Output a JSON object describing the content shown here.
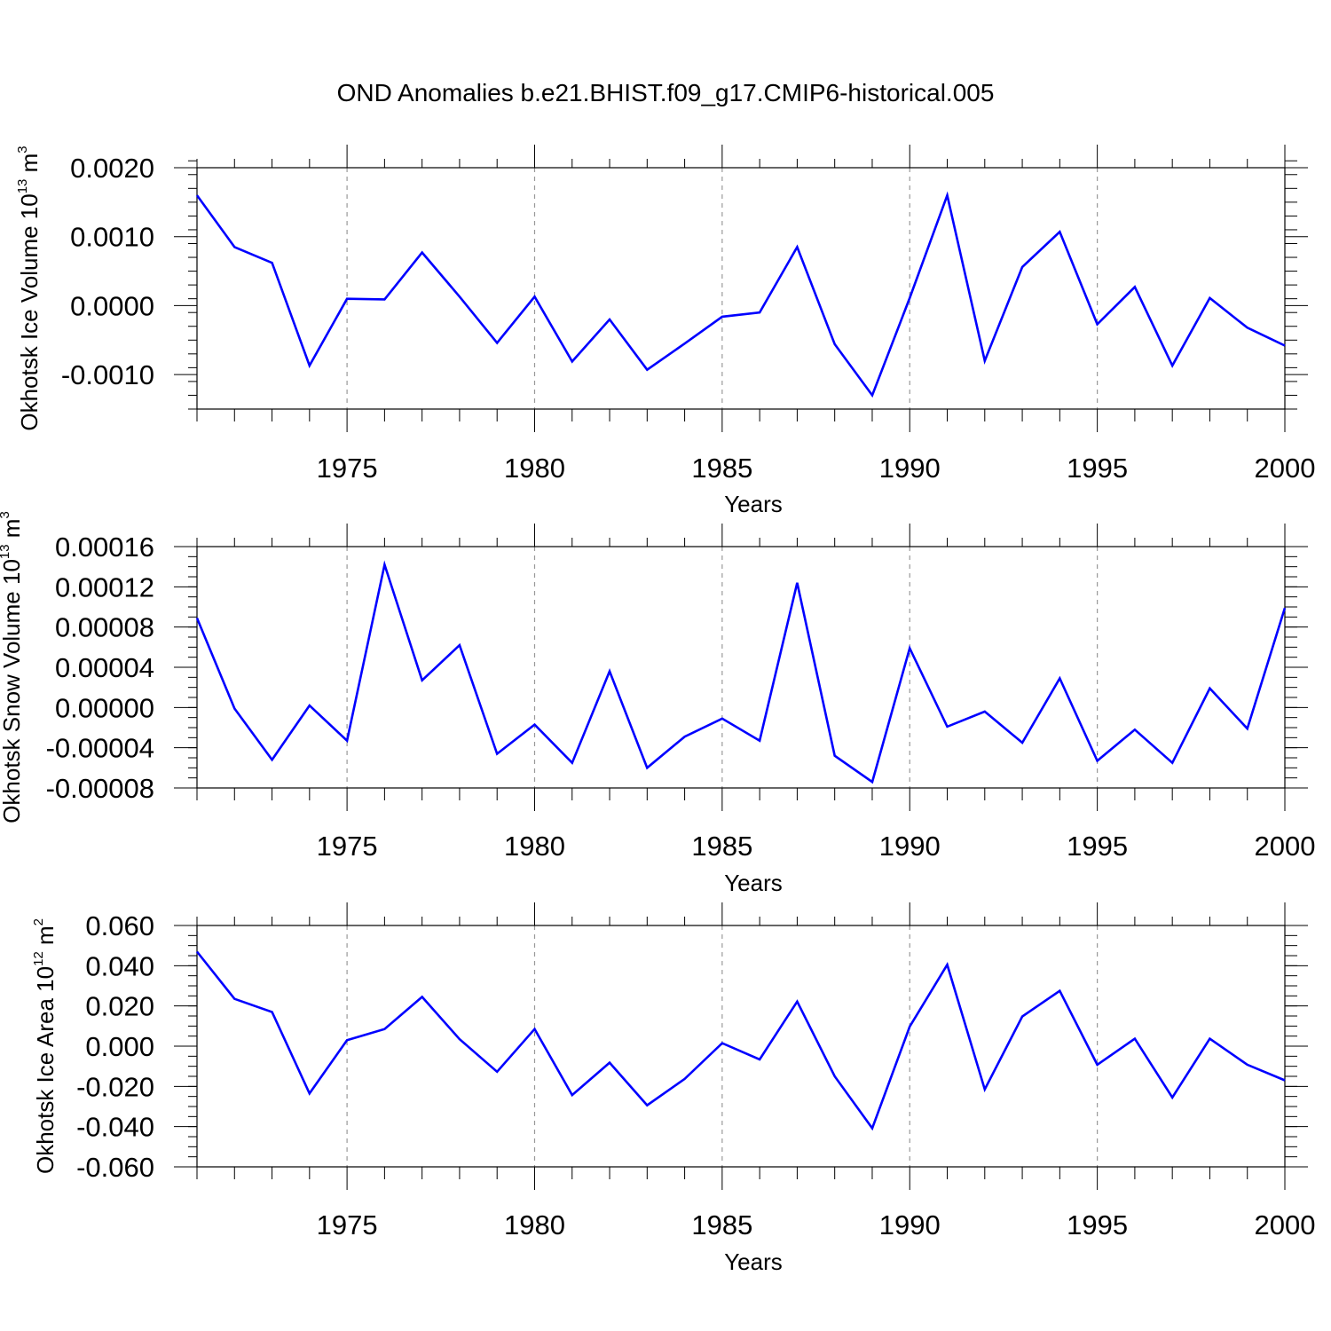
{
  "figure": {
    "title": "OND Anomalies b.e21.BHIST.f09_g17.CMIP6-historical.005"
  },
  "colors": {
    "series": "#0000ff",
    "grid": "#999999",
    "axis": "#000000"
  },
  "chart_data": [
    {
      "type": "line",
      "ylabel_main": "Okhotsk Ice Volume 10",
      "ylabel_exp": "13",
      "ylabel_unit": " m",
      "ylabel_unit_exp": "3",
      "xlabel": "Years",
      "xlim": [
        1971,
        2000
      ],
      "ylim": [
        -0.0015,
        0.002
      ],
      "yticks": [
        -0.001,
        0.0,
        0.001,
        0.002
      ],
      "ytick_labels": [
        "-0.0010",
        "0.0000",
        "0.0010",
        "0.0020"
      ],
      "yminor_step": 0.0002,
      "xticks": [
        1975,
        1980,
        1985,
        1990,
        1995,
        2000
      ],
      "xtick_labels": [
        "1975",
        "1980",
        "1985",
        "1990",
        "1995",
        "2000"
      ],
      "grid": "vertical dashed at major x ticks",
      "series": [
        {
          "x": [
            1971,
            1972,
            1973,
            1974,
            1975,
            1976,
            1977,
            1978,
            1979,
            1980,
            1981,
            1982,
            1983,
            1984,
            1985,
            1986,
            1987,
            1988,
            1989,
            1990,
            1991,
            1992,
            1993,
            1994,
            1995,
            1996,
            1997,
            1998,
            1999,
            2000
          ],
          "values": [
            0.0016,
            0.00085,
            0.00062,
            -0.00087,
            0.0001,
            9e-05,
            0.00077,
            0.00013,
            -0.00054,
            0.00013,
            -0.00081,
            -0.0002,
            -0.00093,
            -0.00055,
            -0.00016,
            -0.0001,
            0.00085,
            -0.00056,
            -0.0013,
            0.00011,
            0.0016,
            -0.0008,
            0.00056,
            0.00107,
            -0.00027,
            0.00027,
            -0.00087,
            0.00011,
            -0.00032,
            -0.00058
          ]
        }
      ]
    },
    {
      "type": "line",
      "ylabel_main": "Okhotsk Snow Volume 10",
      "ylabel_exp": "13",
      "ylabel_unit": " m",
      "ylabel_unit_exp": "3",
      "xlabel": "Years",
      "xlim": [
        1971,
        2000
      ],
      "ylim": [
        -8e-05,
        0.00016
      ],
      "yticks": [
        -8e-05,
        -4e-05,
        0.0,
        4e-05,
        8e-05,
        0.00012,
        0.00016
      ],
      "ytick_labels": [
        "-0.00008",
        "-0.00004",
        "0.00000",
        "0.00004",
        "0.00008",
        "0.00012",
        "0.00016"
      ],
      "yminor_step": 1e-05,
      "xticks": [
        1975,
        1980,
        1985,
        1990,
        1995,
        2000
      ],
      "xtick_labels": [
        "1975",
        "1980",
        "1985",
        "1990",
        "1995",
        "2000"
      ],
      "grid": "vertical dashed at major x ticks",
      "series": [
        {
          "x": [
            1971,
            1972,
            1973,
            1974,
            1975,
            1976,
            1977,
            1978,
            1979,
            1980,
            1981,
            1982,
            1983,
            1984,
            1985,
            1986,
            1987,
            1988,
            1989,
            1990,
            1991,
            1992,
            1993,
            1994,
            1995,
            1996,
            1997,
            1998,
            1999,
            2000
          ],
          "values": [
            8.9e-05,
            -1e-06,
            -5.2e-05,
            2e-06,
            -3.3e-05,
            0.000142,
            2.7e-05,
            6.2e-05,
            -4.6e-05,
            -1.7e-05,
            -5.5e-05,
            3.6e-05,
            -6e-05,
            -2.9e-05,
            -1.1e-05,
            -3.3e-05,
            0.000124,
            -4.8e-05,
            -7.4e-05,
            5.9e-05,
            -1.9e-05,
            -4e-06,
            -3.5e-05,
            2.9e-05,
            -5.3e-05,
            -2.2e-05,
            -5.5e-05,
            1.9e-05,
            -2.1e-05,
            9.9e-05
          ]
        }
      ]
    },
    {
      "type": "line",
      "ylabel_main": "Okhotsk Ice Area 10",
      "ylabel_exp": "12",
      "ylabel_unit": " m",
      "ylabel_unit_exp": "2",
      "xlabel": "Years",
      "xlim": [
        1971,
        2000
      ],
      "ylim": [
        -0.06,
        0.06
      ],
      "yticks": [
        -0.06,
        -0.04,
        -0.02,
        0.0,
        0.02,
        0.04,
        0.06
      ],
      "ytick_labels": [
        "-0.060",
        "-0.040",
        "-0.020",
        "0.000",
        "0.020",
        "0.040",
        "0.060"
      ],
      "yminor_step": 0.005,
      "xticks": [
        1975,
        1980,
        1985,
        1990,
        1995,
        2000
      ],
      "xtick_labels": [
        "1975",
        "1980",
        "1985",
        "1990",
        "1995",
        "2000"
      ],
      "grid": "vertical dashed at major x ticks",
      "series": [
        {
          "x": [
            1971,
            1972,
            1973,
            1974,
            1975,
            1976,
            1977,
            1978,
            1979,
            1980,
            1981,
            1982,
            1983,
            1984,
            1985,
            1986,
            1987,
            1988,
            1989,
            1990,
            1991,
            1992,
            1993,
            1994,
            1995,
            1996,
            1997,
            1998,
            1999,
            2000
          ],
          "values": [
            0.047,
            0.0235,
            0.017,
            -0.0235,
            0.003,
            0.0085,
            0.0245,
            0.0035,
            -0.0127,
            0.0085,
            -0.0243,
            -0.0082,
            -0.0294,
            -0.0163,
            0.0015,
            -0.0066,
            0.0222,
            -0.015,
            -0.0408,
            0.0097,
            0.0405,
            -0.0215,
            0.0148,
            0.0275,
            -0.0092,
            0.0037,
            -0.0255,
            0.0037,
            -0.0092,
            -0.017
          ]
        }
      ]
    }
  ]
}
